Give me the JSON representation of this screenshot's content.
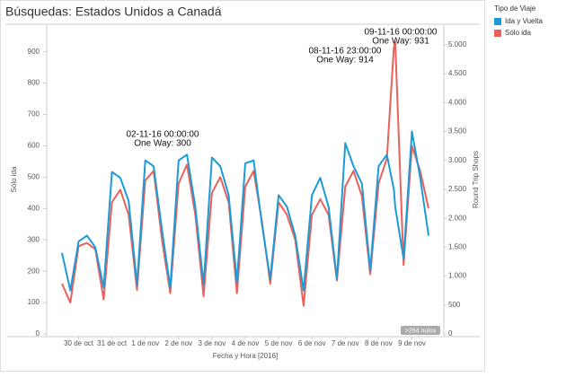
{
  "chart_data": {
    "type": "line",
    "title": "Búsquedas: Estados Unidos a Canadá",
    "xlabel": "Fecha y Hora [2016]",
    "ylabel": "Sólo ida",
    "y2label": "Round Trip Shops",
    "legend_title": "Tipo de Viaje",
    "legend": "right",
    "nulls_badge": ">264 nulos",
    "x": [
      0,
      6,
      12,
      18,
      24,
      30,
      36,
      42,
      48,
      54,
      60,
      66,
      72,
      78,
      84,
      90,
      96,
      102,
      108,
      114,
      120,
      126,
      132,
      138,
      144,
      150,
      156,
      162,
      168,
      174,
      180,
      186,
      192,
      198,
      204,
      210,
      216,
      222,
      228,
      234,
      239,
      240,
      246,
      252,
      258,
      264
    ],
    "xlim": [
      -11,
      275
    ],
    "xticks": [
      {
        "value": 12,
        "label": "30 de oct"
      },
      {
        "value": 36,
        "label": "31 de oct"
      },
      {
        "value": 60,
        "label": "1 de nov"
      },
      {
        "value": 84,
        "label": "2 de nov"
      },
      {
        "value": 108,
        "label": "3 de nov"
      },
      {
        "value": 132,
        "label": "4 de nov"
      },
      {
        "value": 156,
        "label": "5 de nov"
      },
      {
        "value": 180,
        "label": "6 de nov"
      },
      {
        "value": 204,
        "label": "7 de nov"
      },
      {
        "value": 228,
        "label": "8 de nov"
      },
      {
        "value": 252,
        "label": "9 de nov"
      }
    ],
    "ylim": [
      0,
      985
    ],
    "yticks": [
      0,
      100,
      200,
      300,
      400,
      500,
      600,
      700,
      800,
      900
    ],
    "y2lim": [
      0,
      5340
    ],
    "y2ticks": [
      0,
      500,
      {
        "value": 1000,
        "label": "1.000"
      },
      {
        "value": 1500,
        "label": "1.500"
      },
      {
        "value": 2000,
        "label": "2.000"
      },
      {
        "value": 2500,
        "label": "2.500"
      },
      {
        "value": 3000,
        "label": "3.000"
      },
      {
        "value": 3500,
        "label": "3.500"
      },
      {
        "value": 4000,
        "label": "4.000"
      },
      {
        "value": 4500,
        "label": "4.500"
      },
      {
        "value": 5000,
        "label": "5.000"
      }
    ],
    "series": [
      {
        "name": "Ida y Vuelta",
        "color": "#1b9bd7",
        "axis": "y2",
        "values": [
          1400,
          750,
          1600,
          1700,
          1500,
          800,
          2800,
          2700,
          2300,
          850,
          3000,
          2900,
          1800,
          800,
          3000,
          3100,
          2200,
          850,
          3050,
          2900,
          2400,
          900,
          2950,
          3000,
          1900,
          950,
          2400,
          2200,
          1700,
          750,
          2400,
          2700,
          2200,
          950,
          3300,
          2900,
          2600,
          1100,
          2900,
          3100,
          2500,
          2200,
          1300,
          3500,
          2700,
          1700
        ]
      },
      {
        "name": "Sólo ida",
        "color": "#e8615c",
        "values": [
          160,
          100,
          280,
          290,
          270,
          110,
          420,
          460,
          380,
          140,
          490,
          520,
          300,
          130,
          480,
          540,
          380,
          120,
          450,
          500,
          420,
          130,
          470,
          520,
          360,
          160,
          420,
          380,
          300,
          90,
          380,
          430,
          380,
          170,
          470,
          520,
          440,
          190,
          480,
          560,
          914,
          931,
          220,
          600,
          520,
          400
        ]
      }
    ],
    "annotations": [
      {
        "time": "02-11-16 00:00:00",
        "text": "One Way: 300"
      },
      {
        "time": "08-11-16 23:00:00",
        "text": "One Way: 914"
      },
      {
        "time": "09-11-16 00:00:00",
        "text": "One Way: 931"
      }
    ]
  }
}
